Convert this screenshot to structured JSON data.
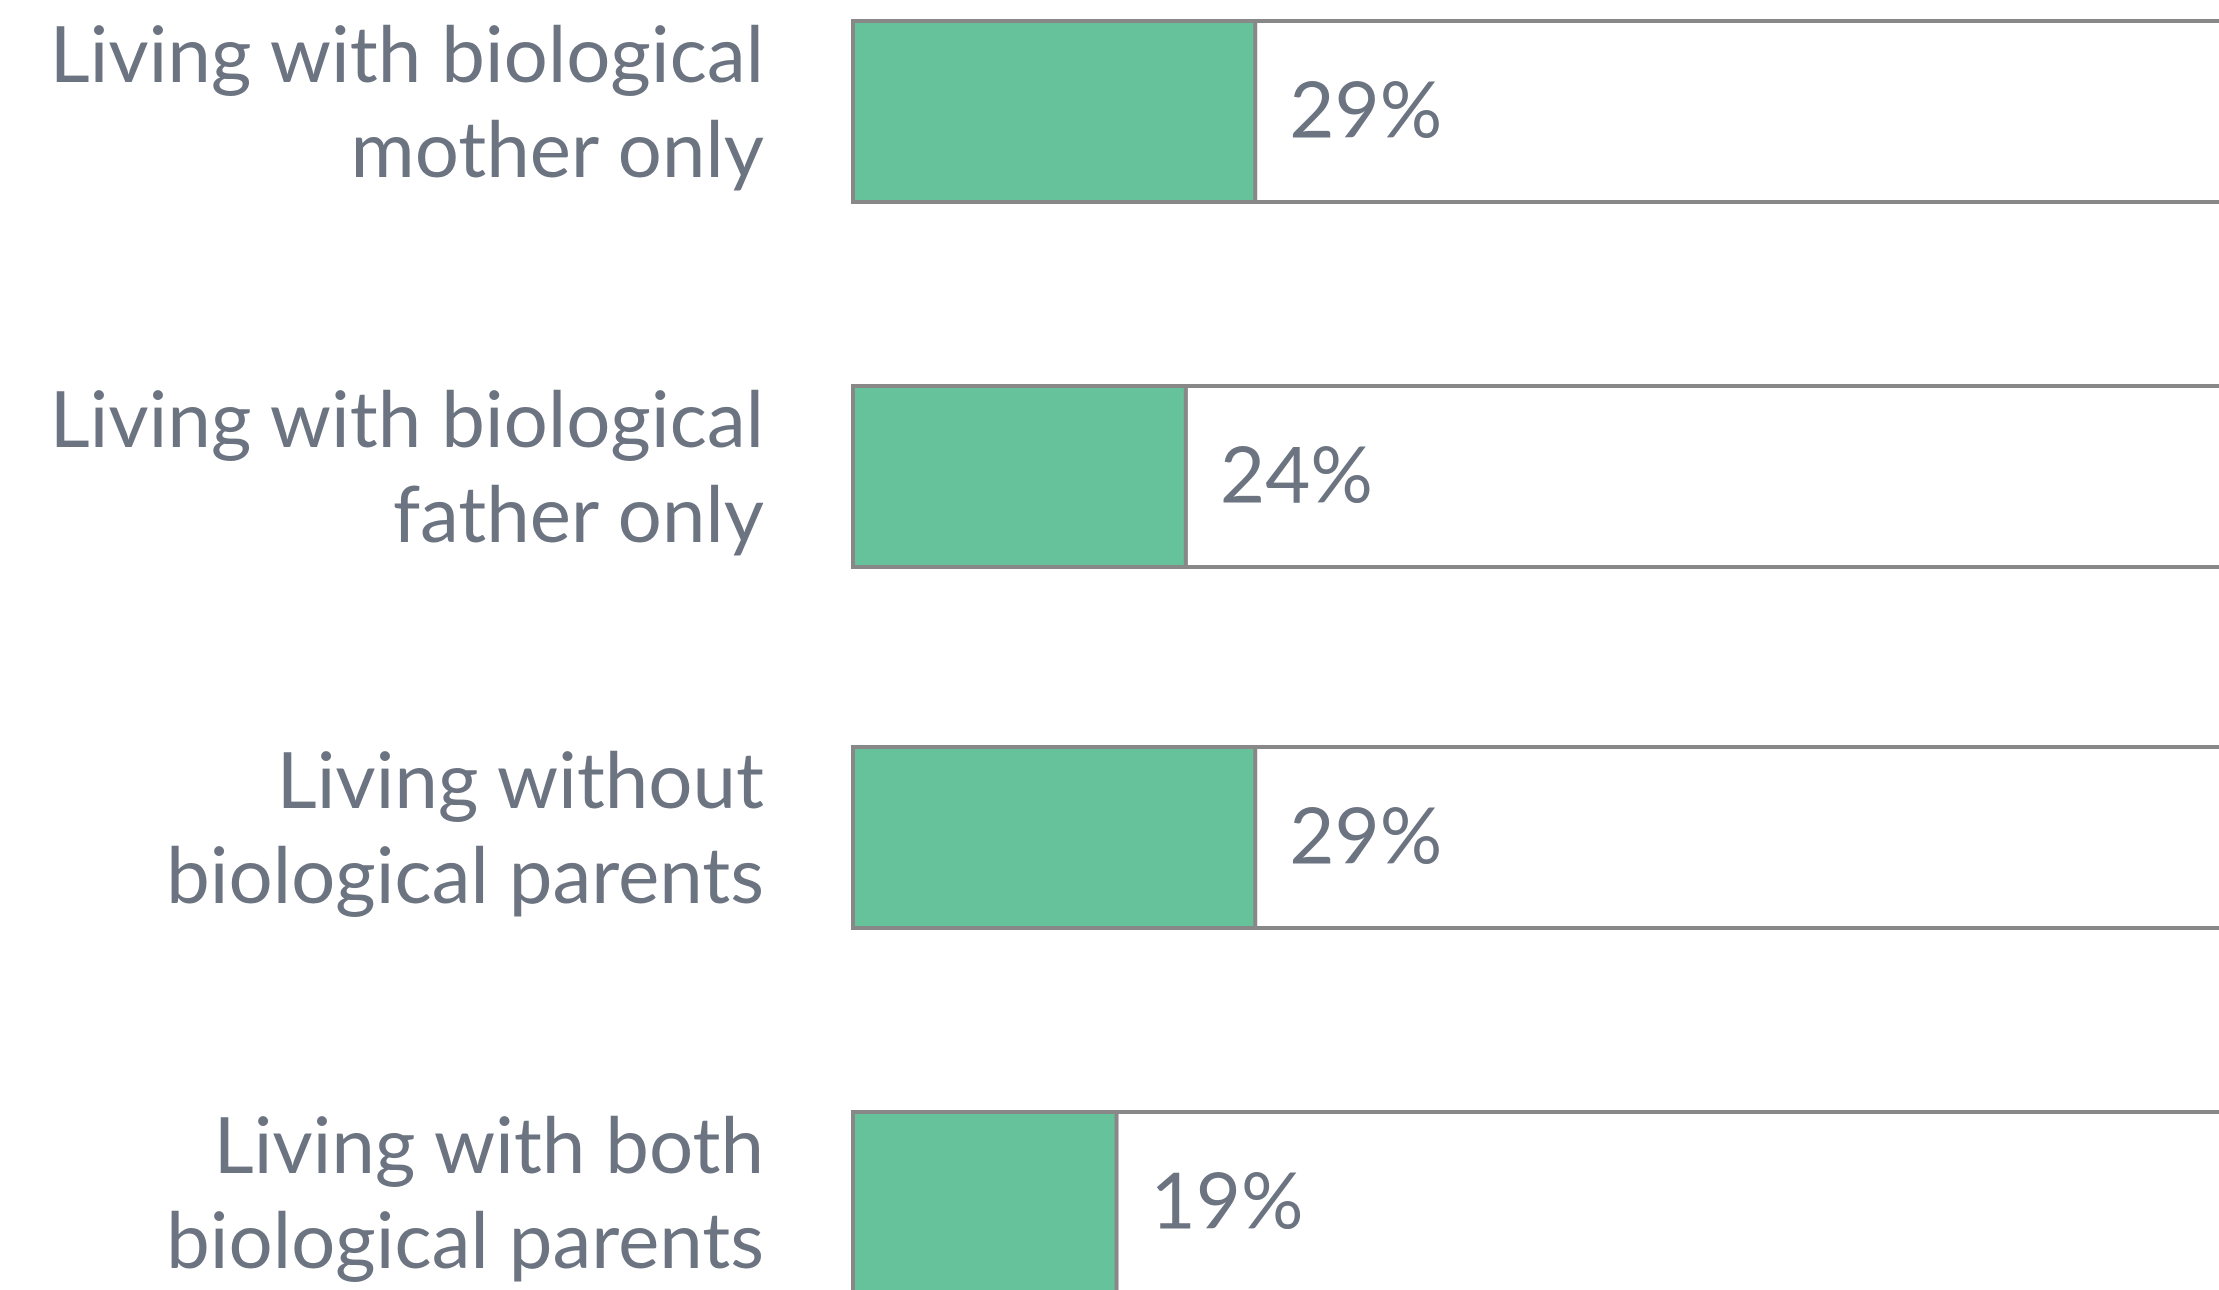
{
  "chart_data": {
    "type": "bar",
    "orientation": "horizontal",
    "categories": [
      [
        "Living with biological",
        "mother only"
      ],
      [
        "Living with biological",
        "father only"
      ],
      [
        "Living without",
        "biological parents"
      ],
      [
        "Living with both",
        "biological parents"
      ]
    ],
    "values": [
      29,
      24,
      29,
      19
    ],
    "value_labels": [
      "29%",
      "24%",
      "29%",
      "19%"
    ],
    "color": "#66c29b",
    "xlim": [
      0,
      100
    ]
  }
}
